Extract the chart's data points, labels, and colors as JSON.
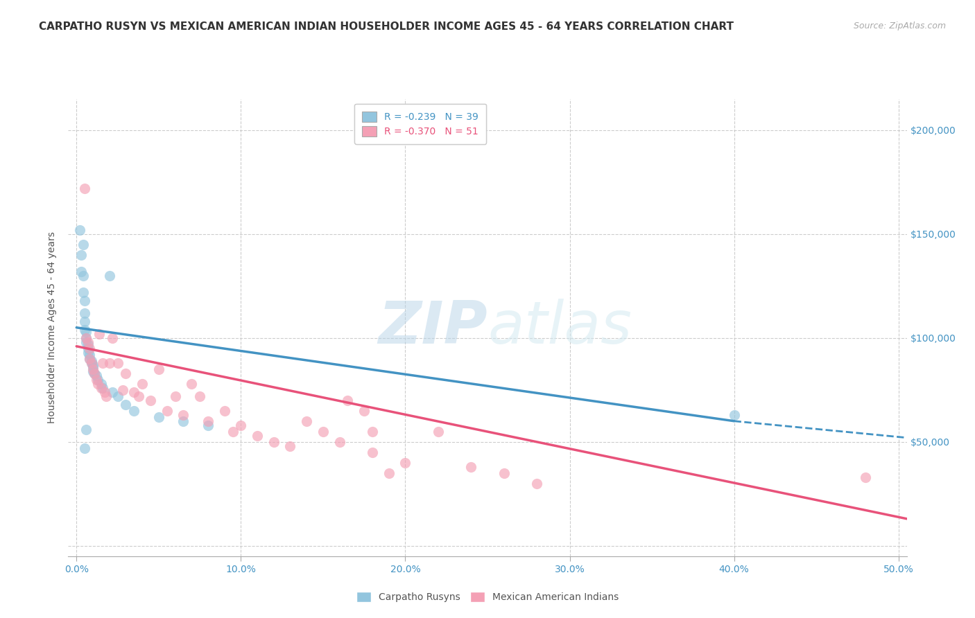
{
  "title": "CARPATHO RUSYN VS MEXICAN AMERICAN INDIAN HOUSEHOLDER INCOME AGES 45 - 64 YEARS CORRELATION CHART",
  "source": "Source: ZipAtlas.com",
  "ylabel": "Householder Income Ages 45 - 64 years",
  "xlim": [
    -0.005,
    0.505
  ],
  "ylim": [
    -5000,
    215000
  ],
  "xticks": [
    0.0,
    0.1,
    0.2,
    0.3,
    0.4,
    0.5
  ],
  "xticklabels": [
    "0.0%",
    "10.0%",
    "20.0%",
    "30.0%",
    "40.0%",
    "50.0%"
  ],
  "yticks": [
    0,
    50000,
    100000,
    150000,
    200000
  ],
  "yticklabels": [
    "",
    "$50,000",
    "$100,000",
    "$150,000",
    "$200,000"
  ],
  "blue_label": "Carpatho Rusyns",
  "pink_label": "Mexican American Indians",
  "blue_R": "-0.239",
  "blue_N": "39",
  "pink_R": "-0.370",
  "pink_N": "51",
  "blue_color": "#92c5de",
  "pink_color": "#f4a0b5",
  "blue_line_color": "#4393c3",
  "pink_line_color": "#e8527a",
  "watermark_zip": "ZIP",
  "watermark_atlas": "atlas",
  "blue_scatter_x": [
    0.002,
    0.003,
    0.003,
    0.004,
    0.004,
    0.004,
    0.005,
    0.005,
    0.005,
    0.005,
    0.006,
    0.006,
    0.006,
    0.007,
    0.007,
    0.007,
    0.008,
    0.008,
    0.009,
    0.009,
    0.01,
    0.01,
    0.01,
    0.011,
    0.012,
    0.013,
    0.015,
    0.016,
    0.02,
    0.022,
    0.025,
    0.03,
    0.035,
    0.05,
    0.065,
    0.08,
    0.005,
    0.006,
    0.4
  ],
  "blue_scatter_y": [
    152000,
    140000,
    132000,
    145000,
    130000,
    122000,
    118000,
    112000,
    108000,
    104000,
    103000,
    100000,
    98000,
    97000,
    95000,
    93000,
    92000,
    90000,
    89000,
    88000,
    87000,
    86000,
    84000,
    83000,
    82000,
    80000,
    78000,
    76000,
    130000,
    74000,
    72000,
    68000,
    65000,
    62000,
    60000,
    58000,
    47000,
    56000,
    63000
  ],
  "pink_scatter_x": [
    0.005,
    0.006,
    0.007,
    0.008,
    0.008,
    0.009,
    0.01,
    0.011,
    0.012,
    0.013,
    0.014,
    0.015,
    0.016,
    0.017,
    0.018,
    0.02,
    0.022,
    0.025,
    0.028,
    0.03,
    0.035,
    0.038,
    0.04,
    0.045,
    0.05,
    0.055,
    0.06,
    0.065,
    0.07,
    0.075,
    0.08,
    0.09,
    0.095,
    0.1,
    0.11,
    0.12,
    0.13,
    0.14,
    0.15,
    0.16,
    0.175,
    0.18,
    0.19,
    0.2,
    0.22,
    0.24,
    0.26,
    0.28,
    0.18,
    0.48,
    0.165
  ],
  "pink_scatter_y": [
    172000,
    100000,
    98000,
    95000,
    90000,
    88000,
    85000,
    83000,
    80000,
    78000,
    102000,
    76000,
    88000,
    74000,
    72000,
    88000,
    100000,
    88000,
    75000,
    83000,
    74000,
    72000,
    78000,
    70000,
    85000,
    65000,
    72000,
    63000,
    78000,
    72000,
    60000,
    65000,
    55000,
    58000,
    53000,
    50000,
    48000,
    60000,
    55000,
    50000,
    65000,
    45000,
    35000,
    40000,
    55000,
    38000,
    35000,
    30000,
    55000,
    33000,
    70000
  ],
  "blue_line_x0": 0.0,
  "blue_line_y0": 105000,
  "blue_line_x1_solid": 0.4,
  "blue_line_y1_solid": 60000,
  "blue_line_x1_dash": 0.505,
  "blue_line_y1_dash": 52000,
  "pink_line_x0": 0.0,
  "pink_line_y0": 96000,
  "pink_line_x1": 0.505,
  "pink_line_y1": 13000,
  "grid_color": "#cccccc",
  "background_color": "#ffffff",
  "title_fontsize": 11,
  "axis_label_fontsize": 10,
  "tick_fontsize": 10,
  "legend_fontsize": 10,
  "source_fontsize": 9
}
